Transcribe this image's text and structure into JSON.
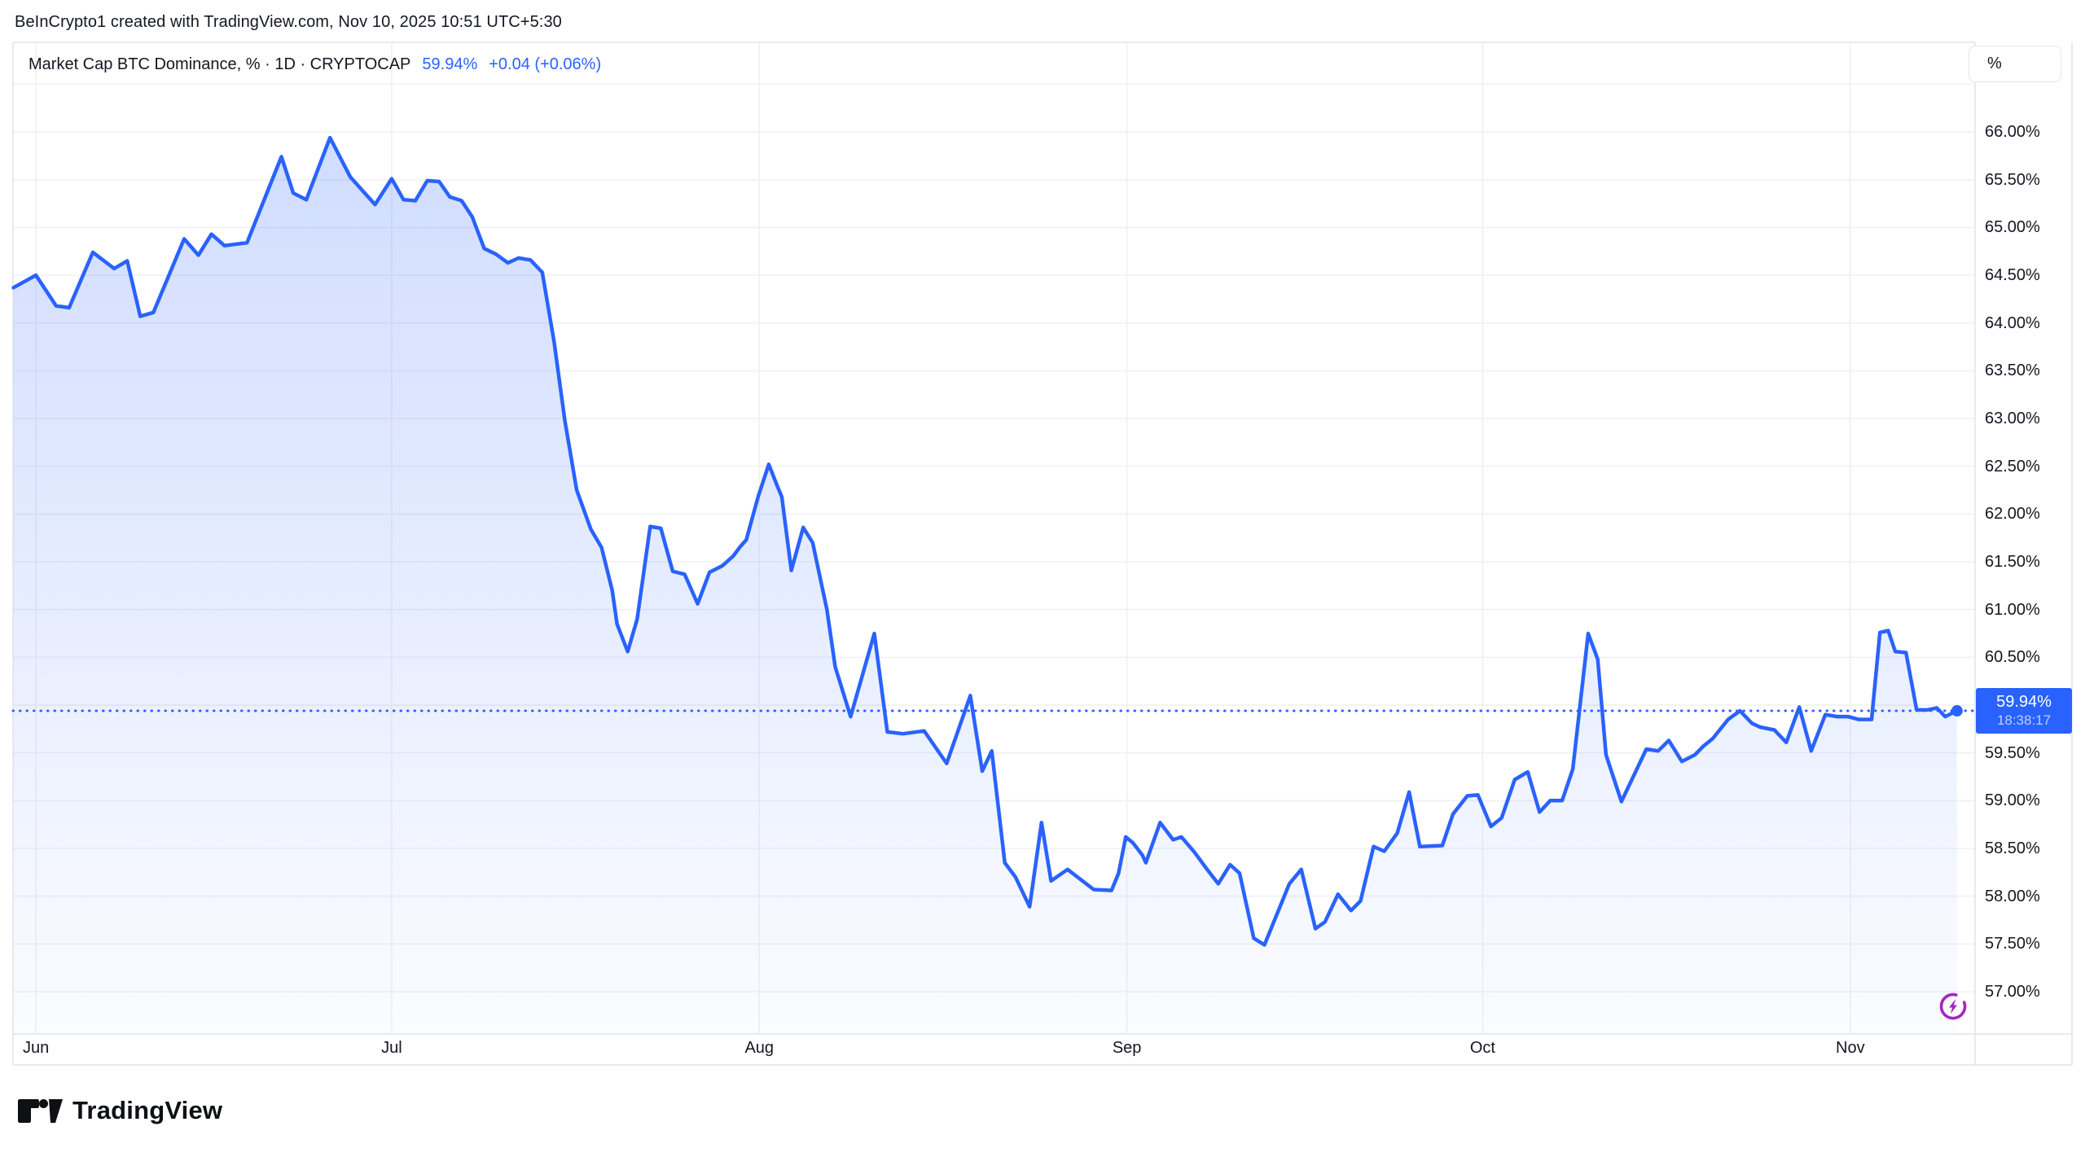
{
  "attribution": "BeInCrypto1 created with TradingView.com, Nov 10, 2025 10:51 UTC+5:30",
  "legend": {
    "title_line": "Market Cap BTC Dominance, % · 1D · CRYPTOCAP",
    "last_value": "59.94%",
    "change": "+0.04 (+0.06%)"
  },
  "price_scale": {
    "unit_button": "%",
    "labels": [
      "66.00%",
      "65.50%",
      "65.00%",
      "64.50%",
      "64.00%",
      "63.50%",
      "63.00%",
      "62.50%",
      "62.00%",
      "61.50%",
      "61.00%",
      "60.50%",
      "59.50%",
      "59.00%",
      "58.50%",
      "58.00%",
      "57.50%",
      "57.00%"
    ]
  },
  "current": {
    "value": 59.94,
    "label": "59.94%",
    "countdown": "18:38:17"
  },
  "time_axis": {
    "months": [
      {
        "label": "Jun",
        "d": 2
      },
      {
        "label": "Jul",
        "d": 32
      },
      {
        "label": "Aug",
        "d": 63
      },
      {
        "label": "Sep",
        "d": 94
      },
      {
        "label": "Oct",
        "d": 124
      },
      {
        "label": "Nov",
        "d": 155
      }
    ]
  },
  "logo": {
    "brand": "TradingView"
  },
  "colors": {
    "line": "#2962FF",
    "area_top": "rgba(41,98,255,0.24)",
    "area_bottom": "rgba(41,98,255,0.02)",
    "grid": "#f0f0f3",
    "border": "#e1e4ec",
    "badge": "#2962FF",
    "text": "#131722",
    "realtime_icon": "#A226C4"
  },
  "chart_data": {
    "type": "area",
    "title": "Market Cap BTC Dominance, %",
    "interval": "1D",
    "symbol": "CRYPTOCAP",
    "ylabel": "%",
    "ylim": [
      57.0,
      66.5
    ],
    "grid_step_pct": 0.5,
    "x_months": [
      "Jun",
      "Jul",
      "Aug",
      "Sep",
      "Oct",
      "Nov"
    ],
    "day0_date": "2025-05-30",
    "last_date": "2025-11-10",
    "current_value": 59.94,
    "points_day_value": [
      [
        0.1,
        64.37
      ],
      [
        2,
        64.5
      ],
      [
        3.7,
        64.18
      ],
      [
        4.8,
        64.16
      ],
      [
        6.8,
        64.74
      ],
      [
        8.6,
        64.57
      ],
      [
        9.7,
        64.65
      ],
      [
        10.8,
        64.07
      ],
      [
        11.9,
        64.11
      ],
      [
        14.5,
        64.88
      ],
      [
        15.7,
        64.71
      ],
      [
        16.8,
        64.93
      ],
      [
        17.9,
        64.81
      ],
      [
        19.8,
        64.84
      ],
      [
        22.7,
        65.74
      ],
      [
        23.7,
        65.36
      ],
      [
        24.8,
        65.29
      ],
      [
        26.8,
        65.94
      ],
      [
        28.5,
        65.53
      ],
      [
        30.6,
        65.24
      ],
      [
        32,
        65.51
      ],
      [
        33,
        65.29
      ],
      [
        34,
        65.28
      ],
      [
        35,
        65.49
      ],
      [
        36,
        65.48
      ],
      [
        36.9,
        65.32
      ],
      [
        37.9,
        65.28
      ],
      [
        38.8,
        65.11
      ],
      [
        39.8,
        64.78
      ],
      [
        40.8,
        64.72
      ],
      [
        41.8,
        64.63
      ],
      [
        42.7,
        64.68
      ],
      [
        43.7,
        64.66
      ],
      [
        44.7,
        64.53
      ],
      [
        45.7,
        63.8
      ],
      [
        46.6,
        62.98
      ],
      [
        47.6,
        62.25
      ],
      [
        48.8,
        61.84
      ],
      [
        49.7,
        61.65
      ],
      [
        50.6,
        61.2
      ],
      [
        51,
        60.85
      ],
      [
        51.9,
        60.56
      ],
      [
        52.7,
        60.9
      ],
      [
        53.8,
        61.87
      ],
      [
        54.7,
        61.85
      ],
      [
        55.7,
        61.4
      ],
      [
        56.7,
        61.37
      ],
      [
        57.8,
        61.06
      ],
      [
        58.8,
        61.39
      ],
      [
        59.9,
        61.46
      ],
      [
        60.8,
        61.56
      ],
      [
        61.4,
        61.66
      ],
      [
        61.9,
        61.73
      ],
      [
        62.9,
        62.18
      ],
      [
        63.8,
        62.52
      ],
      [
        64.5,
        62.3
      ],
      [
        64.9,
        62.18
      ],
      [
        65.7,
        61.41
      ],
      [
        66.7,
        61.86
      ],
      [
        67.5,
        61.7
      ],
      [
        68.7,
        61.0
      ],
      [
        69.4,
        60.4
      ],
      [
        70.7,
        59.88
      ],
      [
        72.7,
        60.75
      ],
      [
        73.8,
        59.72
      ],
      [
        75.1,
        59.7
      ],
      [
        76.9,
        59.73
      ],
      [
        78.8,
        59.39
      ],
      [
        80.8,
        60.1
      ],
      [
        81.8,
        59.31
      ],
      [
        82.6,
        59.52
      ],
      [
        83.7,
        58.35
      ],
      [
        84.6,
        58.2
      ],
      [
        85.8,
        57.89
      ],
      [
        86.8,
        58.77
      ],
      [
        87.6,
        58.16
      ],
      [
        89,
        58.28
      ],
      [
        91.2,
        58.07
      ],
      [
        92.7,
        58.06
      ],
      [
        93.3,
        58.24
      ],
      [
        93.9,
        58.62
      ],
      [
        94.5,
        58.56
      ],
      [
        95.3,
        58.43
      ],
      [
        95.6,
        58.35
      ],
      [
        96.8,
        58.77
      ],
      [
        97.9,
        58.59
      ],
      [
        98.6,
        58.62
      ],
      [
        99.7,
        58.46
      ],
      [
        100.7,
        58.29
      ],
      [
        101.7,
        58.13
      ],
      [
        102.7,
        58.33
      ],
      [
        103.5,
        58.24
      ],
      [
        104.7,
        57.56
      ],
      [
        105.6,
        57.49
      ],
      [
        107.7,
        58.13
      ],
      [
        108.7,
        58.28
      ],
      [
        109.9,
        57.66
      ],
      [
        110.7,
        57.73
      ],
      [
        111.8,
        58.02
      ],
      [
        112.9,
        57.85
      ],
      [
        113.7,
        57.95
      ],
      [
        114.8,
        58.52
      ],
      [
        115.7,
        58.47
      ],
      [
        116.8,
        58.66
      ],
      [
        117.8,
        59.09
      ],
      [
        118.7,
        58.52
      ],
      [
        120.6,
        58.53
      ],
      [
        121.5,
        58.86
      ],
      [
        122.7,
        59.05
      ],
      [
        123.6,
        59.06
      ],
      [
        124.7,
        58.73
      ],
      [
        125.6,
        58.82
      ],
      [
        126.7,
        59.22
      ],
      [
        127.8,
        59.3
      ],
      [
        128.8,
        58.88
      ],
      [
        129.7,
        59.0
      ],
      [
        130.7,
        59.0
      ],
      [
        131.6,
        59.33
      ],
      [
        132.9,
        60.75
      ],
      [
        133.7,
        60.48
      ],
      [
        134.4,
        59.48
      ],
      [
        135.7,
        58.99
      ],
      [
        137.8,
        59.54
      ],
      [
        138.8,
        59.52
      ],
      [
        139.7,
        59.63
      ],
      [
        140.8,
        59.41
      ],
      [
        141.9,
        59.48
      ],
      [
        142.6,
        59.57
      ],
      [
        143.4,
        59.65
      ],
      [
        144.7,
        59.85
      ],
      [
        145.7,
        59.94
      ],
      [
        146.7,
        59.81
      ],
      [
        147.4,
        59.77
      ],
      [
        148.6,
        59.74
      ],
      [
        149.6,
        59.61
      ],
      [
        150.7,
        59.98
      ],
      [
        151.7,
        59.52
      ],
      [
        152.9,
        59.9
      ],
      [
        153.9,
        59.88
      ],
      [
        154.8,
        59.88
      ],
      [
        155.7,
        59.85
      ],
      [
        156.8,
        59.85
      ],
      [
        157.5,
        60.76
      ],
      [
        158.2,
        60.78
      ],
      [
        158.8,
        60.56
      ],
      [
        159.7,
        60.55
      ],
      [
        160.6,
        59.95
      ],
      [
        161.5,
        59.95
      ],
      [
        162.3,
        59.97
      ],
      [
        163,
        59.88
      ],
      [
        164,
        59.94
      ]
    ]
  }
}
